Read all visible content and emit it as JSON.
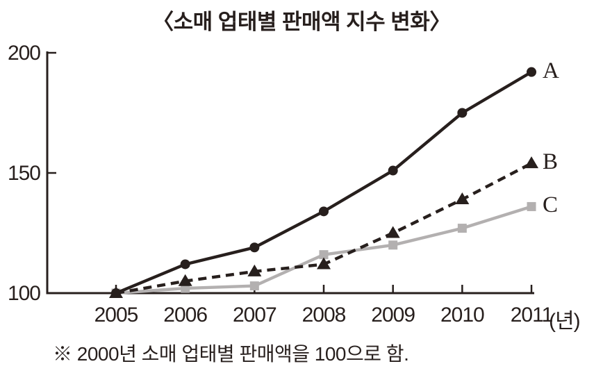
{
  "title": "〈소매 업태별 판매액 지수 변화〉",
  "footnote": "※ 2000년 소매 업태별 판매액을 100으로 함.",
  "colors": {
    "ink": "#271f1d",
    "gray_series": "#b3b0b0",
    "background": "#ffffff"
  },
  "chart_data": {
    "type": "line",
    "title": "소매 업태별 판매액 지수 변화",
    "categories": [
      "2005",
      "2006",
      "2007",
      "2008",
      "2009",
      "2010",
      "2011"
    ],
    "x_unit_label": "(년)",
    "y_ticks": [
      100,
      150,
      200
    ],
    "ylim": [
      100,
      200
    ],
    "grid": false,
    "legend_position": "right-end-labels",
    "series": [
      {
        "name": "A",
        "values": [
          100,
          112,
          119,
          134,
          151,
          175,
          192
        ],
        "color": "#271f1d",
        "marker": "circle",
        "line_style": "solid"
      },
      {
        "name": "B",
        "values": [
          100,
          105,
          109,
          112,
          125,
          139,
          154
        ],
        "color": "#271f1d",
        "marker": "triangle",
        "line_style": "dashed"
      },
      {
        "name": "C",
        "values": [
          100,
          102,
          103,
          116,
          120,
          127,
          136
        ],
        "color": "#b3b0b0",
        "marker": "square",
        "line_style": "solid"
      }
    ]
  }
}
